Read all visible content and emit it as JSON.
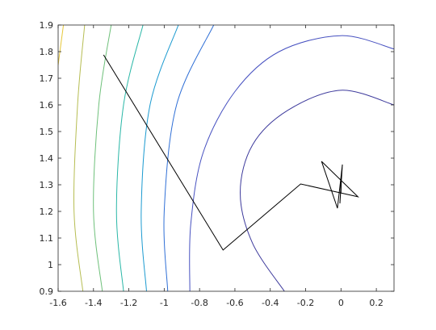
{
  "chart_data": {
    "type": "contour",
    "xlim": [
      -1.6,
      0.3
    ],
    "ylim": [
      0.9,
      1.9
    ],
    "xticks": [
      -1.6,
      -1.4,
      -1.2,
      -1,
      -0.8,
      -0.6,
      -0.4,
      -0.2,
      0,
      0.2
    ],
    "yticks": [
      0.9,
      1,
      1.1,
      1.2,
      1.3,
      1.4,
      1.5,
      1.6,
      1.7,
      1.8,
      1.9
    ],
    "contours": [
      {
        "color": "#3d3a9c",
        "x": [
          0.3,
          0,
          -0.3,
          -0.5,
          -0.57,
          -0.5,
          -0.32
        ],
        "y": [
          1.6,
          1.655,
          1.58,
          1.45,
          1.27,
          1.08,
          0.9
        ]
      },
      {
        "color": "#4650c0",
        "x": [
          0.3,
          0,
          -0.35,
          -0.6,
          -0.78,
          -0.85,
          -0.855
        ],
        "y": [
          1.81,
          1.86,
          1.8,
          1.65,
          1.42,
          1.15,
          0.9
        ]
      },
      {
        "color": "#2f6fd6",
        "x": [
          -0.72,
          -0.93,
          -1.0,
          -0.98
        ],
        "y": [
          1.9,
          1.6,
          1.2,
          0.9
        ]
      },
      {
        "color": "#1b9ad0",
        "x": [
          -0.92,
          -1.08,
          -1.13,
          -1.1
        ],
        "y": [
          1.9,
          1.6,
          1.2,
          0.9
        ]
      },
      {
        "color": "#2ab7a7",
        "x": [
          -1.12,
          -1.23,
          -1.27,
          -1.23
        ],
        "y": [
          1.9,
          1.6,
          1.2,
          0.9
        ]
      },
      {
        "color": "#6ec07a",
        "x": [
          -1.3,
          -1.37,
          -1.4,
          -1.35
        ],
        "y": [
          1.9,
          1.6,
          1.2,
          0.9
        ]
      },
      {
        "color": "#b6bd52",
        "x": [
          -1.45,
          -1.49,
          -1.51,
          -1.46
        ],
        "y": [
          1.9,
          1.6,
          1.2,
          0.9
        ]
      },
      {
        "color": "#e6c83a",
        "x": [
          -1.57,
          -1.6
        ],
        "y": [
          1.9,
          1.75
        ]
      }
    ],
    "path": {
      "color": "#000000",
      "x": [
        -1.343,
        -0.667,
        -0.228,
        0.096,
        -0.11,
        -0.02,
        0.008,
        -0.006,
        0.003,
        0
      ],
      "y": [
        1.788,
        1.055,
        1.303,
        1.255,
        1.388,
        1.212,
        1.376,
        1.23,
        1.342,
        1.27
      ]
    }
  }
}
